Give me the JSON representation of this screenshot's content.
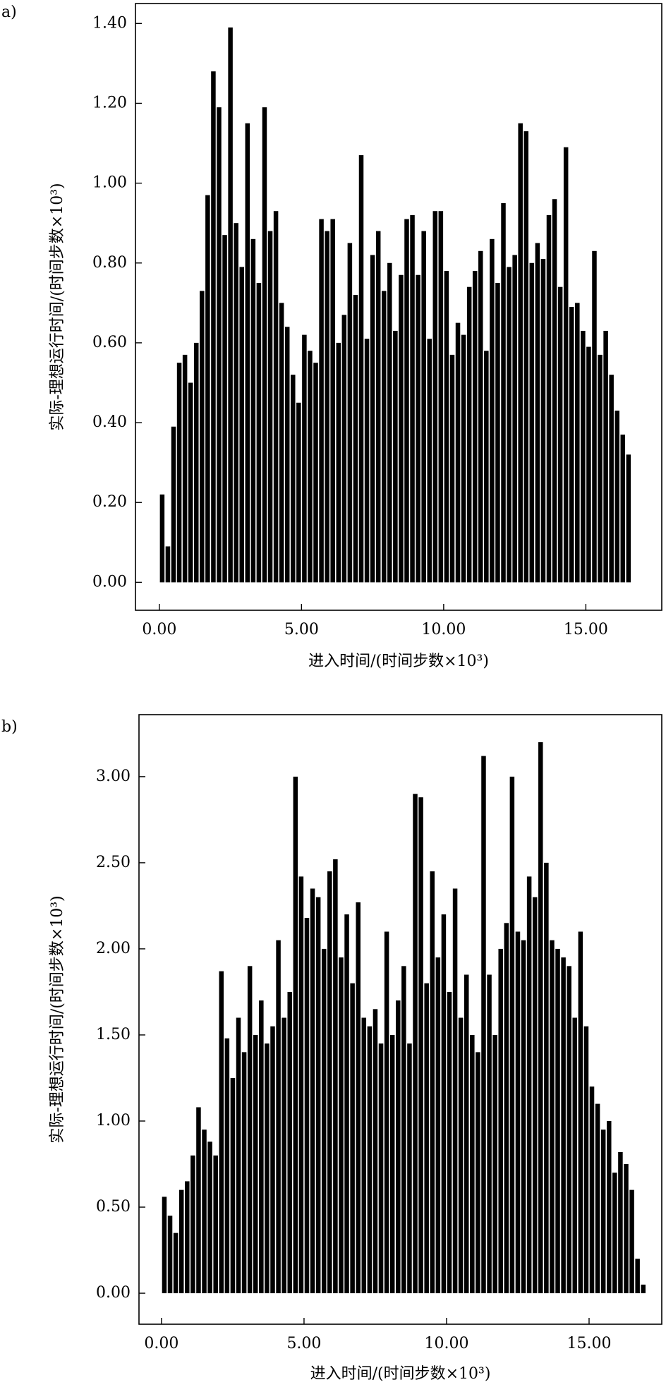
{
  "chart_data": [
    {
      "type": "bar",
      "panel_label": "a)",
      "x_label": "进入时间/(时间步数×10³)",
      "y_label": "实际-理想运行时间/(时间步数×10³)",
      "color": "#000000",
      "x": [
        0.1,
        0.3,
        0.5,
        0.7,
        0.9,
        1.1,
        1.3,
        1.5,
        1.7,
        1.9,
        2.1,
        2.3,
        2.5,
        2.7,
        2.9,
        3.1,
        3.3,
        3.5,
        3.7,
        3.9,
        4.1,
        4.3,
        4.5,
        4.7,
        4.9,
        5.1,
        5.3,
        5.5,
        5.7,
        5.9,
        6.1,
        6.3,
        6.5,
        6.7,
        6.9,
        7.1,
        7.3,
        7.5,
        7.7,
        7.9,
        8.1,
        8.3,
        8.5,
        8.7,
        8.9,
        9.1,
        9.3,
        9.5,
        9.7,
        9.9,
        10.1,
        10.3,
        10.5,
        10.7,
        10.9,
        11.1,
        11.3,
        11.5,
        11.7,
        11.9,
        12.1,
        12.3,
        12.5,
        12.7,
        12.9,
        13.1,
        13.3,
        13.5,
        13.7,
        13.9,
        14.1,
        14.3,
        14.5,
        14.7,
        14.9,
        15.1,
        15.3,
        15.5,
        15.7,
        15.9,
        16.1,
        16.3,
        16.5
      ],
      "values": [
        0.22,
        0.09,
        0.39,
        0.55,
        0.57,
        0.5,
        0.6,
        0.73,
        0.97,
        1.28,
        1.19,
        0.87,
        1.39,
        0.9,
        0.79,
        1.15,
        0.86,
        0.75,
        1.19,
        0.88,
        0.93,
        0.7,
        0.64,
        0.52,
        0.45,
        0.62,
        0.58,
        0.55,
        0.91,
        0.88,
        0.91,
        0.6,
        0.67,
        0.85,
        0.72,
        1.07,
        0.61,
        0.82,
        0.88,
        0.73,
        0.8,
        0.63,
        0.77,
        0.91,
        0.92,
        0.77,
        0.88,
        0.61,
        0.93,
        0.93,
        0.78,
        0.57,
        0.65,
        0.62,
        0.74,
        0.78,
        0.83,
        0.58,
        0.86,
        0.75,
        0.95,
        0.79,
        0.82,
        1.15,
        1.13,
        0.8,
        0.85,
        0.81,
        0.92,
        0.96,
        0.74,
        1.09,
        0.69,
        0.7,
        0.63,
        0.59,
        0.83,
        0.57,
        0.63,
        0.52,
        0.43,
        0.37,
        0.32
      ],
      "xlim": [
        -0.84,
        17.67
      ],
      "ylim": [
        -0.07,
        1.45
      ],
      "xticks": [
        {
          "value": 0,
          "label": "0.00"
        },
        {
          "value": 5,
          "label": "5.00"
        },
        {
          "value": 10,
          "label": "10.00"
        },
        {
          "value": 15,
          "label": "15.00"
        }
      ],
      "yticks": [
        {
          "value": 0,
          "label": "0.00"
        },
        {
          "value": 0.2,
          "label": "0.20"
        },
        {
          "value": 0.4,
          "label": "0.40"
        },
        {
          "value": 0.6,
          "label": "0.60"
        },
        {
          "value": 0.8,
          "label": "0.80"
        },
        {
          "value": 1.0,
          "label": "1.00"
        },
        {
          "value": 1.2,
          "label": "1.20"
        },
        {
          "value": 1.4,
          "label": "1.40"
        }
      ]
    },
    {
      "type": "bar",
      "panel_label": "b)",
      "x_label": "进入时间/(时间步数×10³)",
      "y_label": "实际-理想运行时间/(时间步数×10³)",
      "color": "#000000",
      "x": [
        0.1,
        0.3,
        0.5,
        0.7,
        0.9,
        1.1,
        1.3,
        1.5,
        1.7,
        1.9,
        2.1,
        2.3,
        2.5,
        2.7,
        2.9,
        3.1,
        3.3,
        3.5,
        3.7,
        3.9,
        4.1,
        4.3,
        4.5,
        4.7,
        4.9,
        5.1,
        5.3,
        5.5,
        5.7,
        5.9,
        6.1,
        6.3,
        6.5,
        6.7,
        6.9,
        7.1,
        7.3,
        7.5,
        7.7,
        7.9,
        8.1,
        8.3,
        8.5,
        8.7,
        8.9,
        9.1,
        9.3,
        9.5,
        9.7,
        9.9,
        10.1,
        10.3,
        10.5,
        10.7,
        10.9,
        11.1,
        11.3,
        11.5,
        11.7,
        11.9,
        12.1,
        12.3,
        12.5,
        12.7,
        12.9,
        13.1,
        13.3,
        13.5,
        13.7,
        13.9,
        14.1,
        14.3,
        14.5,
        14.7,
        14.9,
        15.1,
        15.3,
        15.5,
        15.7,
        15.9,
        16.1,
        16.3,
        16.5,
        16.7,
        16.9
      ],
      "values": [
        0.56,
        0.45,
        0.35,
        0.6,
        0.65,
        0.8,
        1.08,
        0.95,
        0.88,
        0.8,
        1.87,
        1.48,
        1.25,
        1.6,
        1.4,
        1.9,
        1.5,
        1.7,
        1.45,
        1.55,
        2.05,
        1.6,
        1.75,
        3.0,
        2.42,
        2.18,
        2.35,
        2.3,
        2.0,
        2.45,
        2.52,
        1.95,
        2.2,
        1.8,
        2.27,
        1.6,
        1.55,
        1.65,
        1.45,
        2.1,
        1.5,
        1.7,
        1.9,
        1.45,
        2.9,
        2.88,
        1.8,
        2.45,
        1.95,
        2.2,
        1.75,
        2.35,
        1.6,
        1.85,
        1.5,
        1.4,
        3.12,
        1.85,
        1.5,
        2.0,
        2.15,
        3.0,
        2.1,
        2.05,
        2.42,
        2.3,
        3.2,
        2.5,
        2.05,
        2.0,
        1.95,
        1.9,
        1.6,
        2.1,
        1.55,
        1.2,
        1.1,
        0.95,
        1.0,
        0.7,
        0.82,
        0.75,
        0.6,
        0.2,
        0.05
      ],
      "xlim": [
        -0.79,
        17.55
      ],
      "ylim": [
        -0.18,
        3.36
      ],
      "xticks": [
        {
          "value": 0,
          "label": "0.00"
        },
        {
          "value": 5,
          "label": "5.00"
        },
        {
          "value": 10,
          "label": "10.00"
        },
        {
          "value": 15,
          "label": "15.00"
        }
      ],
      "yticks": [
        {
          "value": 0,
          "label": "0.00"
        },
        {
          "value": 0.5,
          "label": "0.50"
        },
        {
          "value": 1.0,
          "label": "1.00"
        },
        {
          "value": 1.5,
          "label": "1.50"
        },
        {
          "value": 2.0,
          "label": "2.00"
        },
        {
          "value": 2.5,
          "label": "2.50"
        },
        {
          "value": 3.0,
          "label": "3.00"
        }
      ]
    }
  ]
}
